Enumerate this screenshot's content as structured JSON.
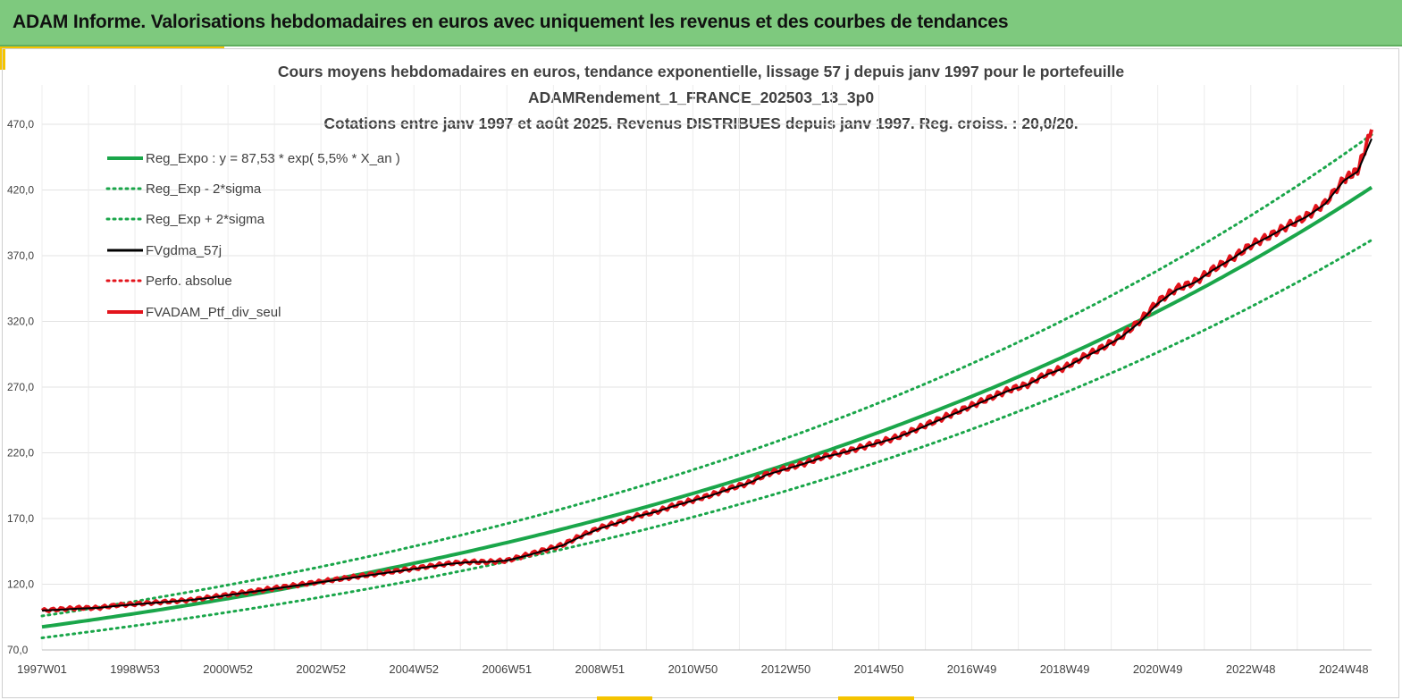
{
  "header": {
    "title": "ADAM Informe. Valorisations hebdomadaires en euros avec uniquement les revenus et des courbes de tendances"
  },
  "colors": {
    "header_bg": "#7ec97e",
    "accent": "#f5c400",
    "reg_green": "#1aa64a",
    "ptf_red": "#e3141c",
    "gdma_black": "#000000"
  },
  "chart_data": {
    "type": "line",
    "title_lines": [
      "Cours moyens hebdomadaires  en euros, tendance exponentielle, lissage 57 j depuis janv 1997 pour le portefeuille",
      "ADAMRendement_1_FRANCE_202503_13_3p0",
      "Cotations  entre janv 1997 et août 2025. Revenus DISTRIBUES depuis janv 1997. Reg. croiss. : 20,0/20."
    ],
    "xlabel": "",
    "ylabel": "",
    "x_range": [
      1997.0,
      2025.6
    ],
    "ylim": [
      70,
      480
    ],
    "y_ticks": [
      70,
      120,
      170,
      220,
      270,
      320,
      370,
      420,
      470
    ],
    "y_tick_labels": [
      "70,0",
      "120,0",
      "170,0",
      "220,0",
      "270,0",
      "320,0",
      "370,0",
      "420,0",
      "470,0"
    ],
    "x_ticks": [
      {
        "label": "1997W01",
        "x": 1997.0
      },
      {
        "label": "1998W53",
        "x": 1999.0
      },
      {
        "label": "2000W52",
        "x": 2001.0
      },
      {
        "label": "2002W52",
        "x": 2003.0
      },
      {
        "label": "2004W52",
        "x": 2005.0
      },
      {
        "label": "2006W51",
        "x": 2007.0
      },
      {
        "label": "2008W51",
        "x": 2009.0
      },
      {
        "label": "2010W50",
        "x": 2011.0
      },
      {
        "label": "2012W50",
        "x": 2013.0
      },
      {
        "label": "2014W50",
        "x": 2015.0
      },
      {
        "label": "2016W49",
        "x": 2017.0
      },
      {
        "label": "2018W49",
        "x": 2019.0
      },
      {
        "label": "2020W49",
        "x": 2021.0
      },
      {
        "label": "2022W48",
        "x": 2023.0
      },
      {
        "label": "2024W48",
        "x": 2025.0
      }
    ],
    "grid": "vertical and horizontal",
    "legend_placement": "top-left",
    "regression": {
      "a": 87.53,
      "rate": 0.055,
      "lower_factor": 0.905,
      "upper_factor": 1.095
    },
    "series": [
      {
        "name": "Reg_Expo : y = 87,53 * exp( 5,5% *  X_an )",
        "style": "solid",
        "color": "#1aa64a",
        "width": 4
      },
      {
        "name": "Reg_Exp - 2*sigma",
        "style": "dotted",
        "color": "#1aa64a",
        "width": 3
      },
      {
        "name": "Reg_Exp + 2*sigma",
        "style": "dotted",
        "color": "#1aa64a",
        "width": 3
      },
      {
        "name": "FVgdma_57j",
        "style": "solid",
        "color": "#000000",
        "width": 3
      },
      {
        "name": "Perfo. absolue",
        "style": "dotted",
        "color": "#e3141c",
        "width": 3
      },
      {
        "name": "FVADAM_Ptf_div_seul",
        "style": "solid",
        "color": "#e3141c",
        "width": 4
      }
    ],
    "portfolio": {
      "x": [
        1997.0,
        1997.4,
        1997.8,
        1998.2,
        1998.6,
        1999.0,
        1999.4,
        1999.8,
        2000.2,
        2000.6,
        2001.0,
        2001.4,
        2001.8,
        2002.2,
        2002.6,
        2003.0,
        2003.4,
        2003.8,
        2004.2,
        2004.6,
        2005.0,
        2005.4,
        2005.8,
        2006.2,
        2006.6,
        2007.0,
        2007.4,
        2007.8,
        2008.2,
        2008.6,
        2009.0,
        2009.4,
        2009.8,
        2010.2,
        2010.6,
        2011.0,
        2011.4,
        2011.8,
        2012.2,
        2012.6,
        2013.0,
        2013.4,
        2013.8,
        2014.2,
        2014.6,
        2015.0,
        2015.4,
        2015.8,
        2016.2,
        2016.6,
        2017.0,
        2017.4,
        2017.8,
        2018.2,
        2018.6,
        2019.0,
        2019.4,
        2019.8,
        2020.2,
        2020.6,
        2021.0,
        2021.4,
        2021.8,
        2022.2,
        2022.6,
        2023.0,
        2023.4,
        2023.8,
        2024.2,
        2024.6,
        2025.0,
        2025.3,
        2025.6
      ],
      "y": [
        100,
        101,
        102,
        102,
        104,
        105,
        106,
        107,
        108,
        110,
        112,
        114,
        116,
        118,
        120,
        122,
        124,
        126,
        128,
        130,
        132,
        134,
        136,
        137,
        137,
        138,
        142,
        146,
        150,
        157,
        163,
        167,
        172,
        175,
        180,
        184,
        188,
        193,
        197,
        204,
        208,
        212,
        217,
        220,
        224,
        228,
        232,
        238,
        244,
        250,
        256,
        262,
        268,
        272,
        280,
        285,
        293,
        300,
        308,
        320,
        335,
        345,
        350,
        360,
        368,
        378,
        385,
        393,
        400,
        410,
        428,
        435,
        466
      ]
    },
    "smoothed": {
      "x": [
        1997.0,
        1997.4,
        1997.8,
        1998.2,
        1998.6,
        1999.0,
        1999.4,
        1999.8,
        2000.2,
        2000.6,
        2001.0,
        2001.4,
        2001.8,
        2002.2,
        2002.6,
        2003.0,
        2003.4,
        2003.8,
        2004.2,
        2004.6,
        2005.0,
        2005.4,
        2005.8,
        2006.2,
        2006.6,
        2007.0,
        2007.4,
        2007.8,
        2008.2,
        2008.6,
        2009.0,
        2009.4,
        2009.8,
        2010.2,
        2010.6,
        2011.0,
        2011.4,
        2011.8,
        2012.2,
        2012.6,
        2013.0,
        2013.4,
        2013.8,
        2014.2,
        2014.6,
        2015.0,
        2015.4,
        2015.8,
        2016.2,
        2016.6,
        2017.0,
        2017.4,
        2017.8,
        2018.2,
        2018.6,
        2019.0,
        2019.4,
        2019.8,
        2020.2,
        2020.6,
        2021.0,
        2021.4,
        2021.8,
        2022.2,
        2022.6,
        2023.0,
        2023.4,
        2023.8,
        2024.2,
        2024.6,
        2025.0,
        2025.3,
        2025.6
      ],
      "y": [
        100,
        100.6,
        101.5,
        102,
        103.5,
        104.6,
        105.8,
        106.8,
        108,
        109.6,
        111.6,
        113.6,
        115.6,
        117.6,
        119.6,
        121.6,
        123.6,
        125.6,
        127.6,
        129.6,
        131.6,
        133.6,
        135.6,
        136.8,
        137,
        138,
        141.5,
        145.6,
        149.6,
        156.4,
        162.4,
        166.8,
        171.6,
        175,
        179.6,
        183.6,
        187.6,
        192.6,
        196.8,
        203.4,
        207.6,
        211.8,
        216.6,
        219.8,
        223.8,
        227.6,
        231.8,
        237.4,
        243.4,
        249.4,
        255.4,
        261.4,
        267.4,
        271.8,
        279.4,
        284.6,
        292.4,
        299.4,
        307.6,
        319,
        333.6,
        344,
        349.6,
        359.4,
        367.6,
        377.4,
        384.6,
        392.6,
        399.6,
        409.4,
        427,
        434,
        459
      ]
    }
  }
}
